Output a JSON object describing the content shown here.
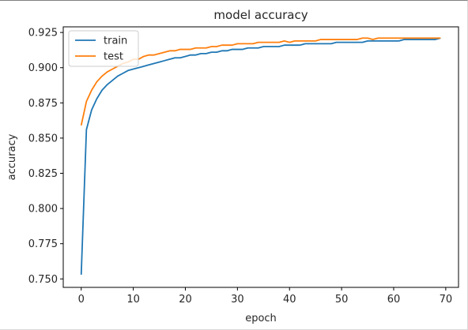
{
  "chart_data": {
    "type": "line",
    "title": "model accuracy",
    "xlabel": "epoch",
    "ylabel": "accuracy",
    "xlim": [
      -3.45,
      72.45
    ],
    "ylim": [
      0.744,
      0.929
    ],
    "xticks": [
      0,
      10,
      20,
      30,
      40,
      50,
      60,
      70
    ],
    "yticks": [
      0.75,
      0.775,
      0.8,
      0.825,
      0.85,
      0.875,
      0.9,
      0.925
    ],
    "ytick_labels": [
      "0.750",
      "0.775",
      "0.800",
      "0.825",
      "0.850",
      "0.875",
      "0.900",
      "0.925"
    ],
    "grid": false,
    "legend": "upper left",
    "series": [
      {
        "name": "train",
        "color": "#1f77b4",
        "x": [
          0,
          1,
          2,
          3,
          4,
          5,
          6,
          7,
          8,
          9,
          10,
          11,
          12,
          13,
          14,
          15,
          16,
          17,
          18,
          19,
          20,
          21,
          22,
          23,
          24,
          25,
          26,
          27,
          28,
          29,
          30,
          31,
          32,
          33,
          34,
          35,
          36,
          37,
          38,
          39,
          40,
          41,
          42,
          43,
          44,
          45,
          46,
          47,
          48,
          49,
          50,
          51,
          52,
          53,
          54,
          55,
          56,
          57,
          58,
          59,
          60,
          61,
          62,
          63,
          64,
          65,
          66,
          67,
          68,
          69
        ],
        "y": [
          0.753,
          0.856,
          0.87,
          0.878,
          0.884,
          0.888,
          0.891,
          0.894,
          0.896,
          0.898,
          0.899,
          0.9,
          0.901,
          0.902,
          0.903,
          0.904,
          0.905,
          0.906,
          0.907,
          0.907,
          0.908,
          0.909,
          0.909,
          0.91,
          0.91,
          0.911,
          0.911,
          0.912,
          0.912,
          0.913,
          0.913,
          0.913,
          0.914,
          0.914,
          0.914,
          0.915,
          0.915,
          0.915,
          0.915,
          0.916,
          0.916,
          0.916,
          0.916,
          0.917,
          0.917,
          0.917,
          0.917,
          0.917,
          0.917,
          0.918,
          0.918,
          0.918,
          0.918,
          0.918,
          0.918,
          0.919,
          0.919,
          0.919,
          0.919,
          0.919,
          0.919,
          0.919,
          0.92,
          0.92,
          0.92,
          0.92,
          0.92,
          0.92,
          0.92,
          0.921
        ]
      },
      {
        "name": "test",
        "color": "#ff7f0e",
        "x": [
          0,
          1,
          2,
          3,
          4,
          5,
          6,
          7,
          8,
          9,
          10,
          11,
          12,
          13,
          14,
          15,
          16,
          17,
          18,
          19,
          20,
          21,
          22,
          23,
          24,
          25,
          26,
          27,
          28,
          29,
          30,
          31,
          32,
          33,
          34,
          35,
          36,
          37,
          38,
          39,
          40,
          41,
          42,
          43,
          44,
          45,
          46,
          47,
          48,
          49,
          50,
          51,
          52,
          53,
          54,
          55,
          56,
          57,
          58,
          59,
          60,
          61,
          62,
          63,
          64,
          65,
          66,
          67,
          68,
          69
        ],
        "y": [
          0.859,
          0.876,
          0.884,
          0.89,
          0.894,
          0.897,
          0.899,
          0.901,
          0.903,
          0.904,
          0.906,
          0.906,
          0.908,
          0.909,
          0.909,
          0.91,
          0.911,
          0.912,
          0.912,
          0.913,
          0.913,
          0.913,
          0.914,
          0.914,
          0.914,
          0.915,
          0.915,
          0.916,
          0.916,
          0.916,
          0.917,
          0.917,
          0.917,
          0.917,
          0.918,
          0.918,
          0.918,
          0.918,
          0.918,
          0.919,
          0.918,
          0.919,
          0.919,
          0.919,
          0.919,
          0.919,
          0.92,
          0.92,
          0.92,
          0.92,
          0.92,
          0.92,
          0.92,
          0.92,
          0.921,
          0.921,
          0.92,
          0.921,
          0.921,
          0.921,
          0.921,
          0.921,
          0.921,
          0.921,
          0.921,
          0.921,
          0.921,
          0.921,
          0.921,
          0.921
        ]
      }
    ]
  }
}
